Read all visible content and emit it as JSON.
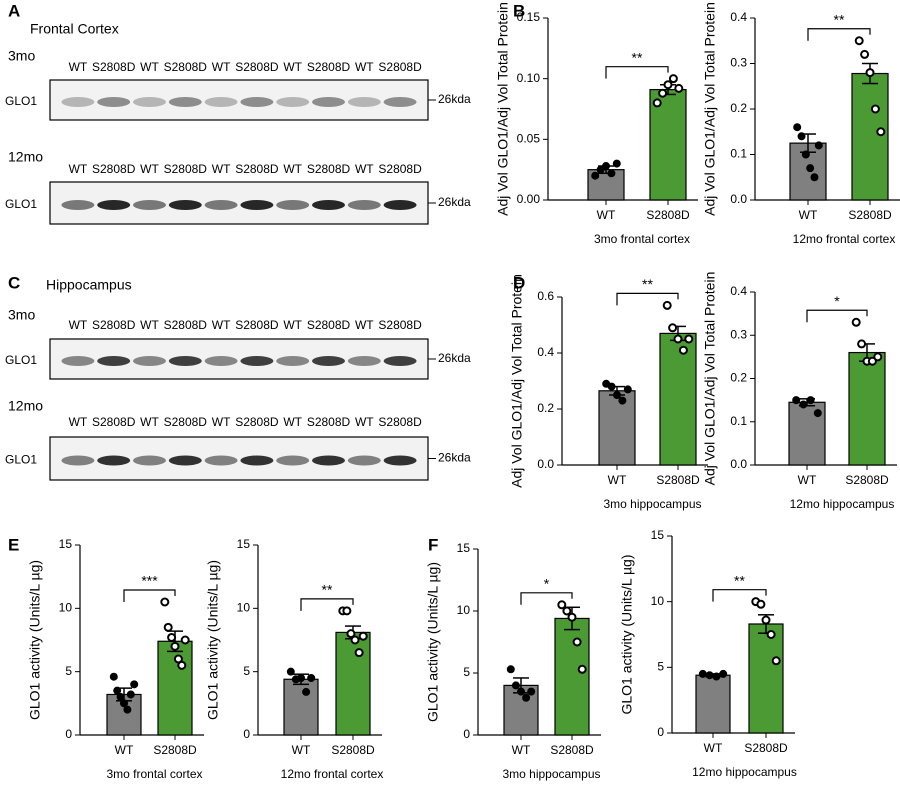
{
  "panel_labels": [
    "A",
    "B",
    "C",
    "D",
    "E",
    "F"
  ],
  "blots": [
    {
      "title": "Frontal Cortex",
      "rows": [
        {
          "age": "3mo",
          "lanes": [
            "WT",
            "S2808D",
            "WT",
            "S2808D",
            "WT",
            "S2808D",
            "WT",
            "S2808D",
            "WT",
            "S2808D"
          ],
          "row_label": "GLO1",
          "size": "26kda"
        },
        {
          "age": "12mo",
          "lanes": [
            "WT",
            "S2808D",
            "WT",
            "S2808D",
            "WT",
            "S2808D",
            "WT",
            "S2808D",
            "WT",
            "S2808D"
          ],
          "row_label": "GLO1",
          "size": "26kda"
        }
      ]
    },
    {
      "title": "Hippocampus",
      "rows": [
        {
          "age": "3mo",
          "lanes": [
            "WT",
            "S2808D",
            "WT",
            "S2808D",
            "WT",
            "S2808D",
            "WT",
            "S2808D",
            "WT",
            "S2808D"
          ],
          "row_label": "GLO1",
          "size": "26kda"
        },
        {
          "age": "12mo",
          "lanes": [
            "WT",
            "S2808D",
            "WT",
            "S2808D",
            "WT",
            "S2808D",
            "WT",
            "S2808D",
            "WT",
            "S2808D"
          ],
          "row_label": "GLO1",
          "size": "26kda"
        }
      ]
    }
  ],
  "chart_data": [
    {
      "type": "bar",
      "ylabel": "Adj Vol GLO1/Adj Vol Total Protein",
      "xlabel": "3mo frontal cortex",
      "significance": "**",
      "categories": [
        "WT",
        "S2808D"
      ],
      "colors": [
        "#808080",
        "#4b9a34"
      ],
      "values": [
        0.025,
        0.091
      ],
      "errors": [
        0.003,
        0.004
      ],
      "points": [
        [
          0.02,
          0.025,
          0.028,
          0.022,
          0.03
        ],
        [
          0.08,
          0.088,
          0.095,
          0.1,
          0.092
        ]
      ],
      "ylim": [
        0,
        0.15
      ],
      "yticks": [
        {
          "value": 0,
          "label": "0.00"
        },
        0.05,
        {
          "value": 0.1,
          "label": "0.10"
        },
        0.15
      ]
    },
    {
      "type": "bar",
      "ylabel": "Adj Vol GLO1/Adj Vol Total Protein",
      "xlabel": "12mo frontal cortex",
      "significance": "**",
      "categories": [
        "WT",
        "S2808D"
      ],
      "colors": [
        "#808080",
        "#4b9a34"
      ],
      "values": [
        0.125,
        0.278
      ],
      "errors": [
        0.02,
        0.022
      ],
      "points": [
        [
          0.16,
          0.14,
          0.1,
          0.07,
          0.05,
          0.12
        ],
        [
          0.35,
          0.32,
          0.28,
          0.2,
          0.15
        ]
      ],
      "ylim": [
        0,
        0.4
      ],
      "yticks": [
        {
          "value": 0,
          "label": "0.0"
        },
        0.1,
        0.2,
        0.3,
        0.4
      ]
    },
    {
      "type": "bar",
      "ylabel": "Adj Vol GLO1/Adj Vol Total Protein",
      "xlabel": "3mo hippocampus",
      "significance": "**",
      "categories": [
        "WT",
        "S2808D"
      ],
      "colors": [
        "#808080",
        "#4b9a34"
      ],
      "values": [
        0.265,
        0.47
      ],
      "errors": [
        0.015,
        0.025
      ],
      "points": [
        [
          0.29,
          0.28,
          0.25,
          0.23,
          0.27
        ],
        [
          0.57,
          0.49,
          0.45,
          0.41,
          0.45
        ]
      ],
      "ylim": [
        0,
        0.6
      ],
      "yticks": [
        {
          "value": 0,
          "label": "0.0"
        },
        0.2,
        0.4,
        0.6
      ]
    },
    {
      "type": "bar",
      "ylabel": "Adj Vol GLO1/Adj Vol Total Protein",
      "xlabel": "12mo hippocampus",
      "significance": "*",
      "categories": [
        "WT",
        "S2808D"
      ],
      "colors": [
        "#808080",
        "#4b9a34"
      ],
      "values": [
        0.145,
        0.26
      ],
      "errors": [
        0.008,
        0.02
      ],
      "points": [
        [
          0.15,
          0.14,
          0.15,
          0.12
        ],
        [
          0.33,
          0.28,
          0.24,
          0.24,
          0.25
        ]
      ],
      "ylim": [
        0,
        0.4
      ],
      "yticks": [
        {
          "value": 0,
          "label": "0.0"
        },
        0.1,
        0.2,
        0.3,
        0.4
      ]
    },
    {
      "type": "bar",
      "ylabel": "GLO1 activity (Units/L µg)",
      "xlabel": "3mo frontal cortex",
      "significance": "***",
      "categories": [
        "WT",
        "S2808D"
      ],
      "colors": [
        "#808080",
        "#4b9a34"
      ],
      "values": [
        3.2,
        7.4
      ],
      "errors": [
        0.5,
        0.8
      ],
      "points": [
        [
          4.6,
          3.5,
          3,
          2.5,
          2,
          3.2,
          4
        ],
        [
          10.5,
          8.5,
          7.7,
          7,
          6,
          5.5,
          7.5
        ]
      ],
      "ylim": [
        0,
        15
      ],
      "yticks": [
        0,
        5,
        10,
        15
      ]
    },
    {
      "type": "bar",
      "ylabel": "GLO1 activity (Units/L µg)",
      "xlabel": "12mo frontal cortex",
      "significance": "**",
      "categories": [
        "WT",
        "S2808D"
      ],
      "colors": [
        "#808080",
        "#4b9a34"
      ],
      "values": [
        4.4,
        8.1
      ],
      "errors": [
        0.4,
        0.5
      ],
      "points": [
        [
          5,
          4.4,
          4.5,
          3.4,
          4.5
        ],
        [
          9.8,
          9.8,
          8,
          7.5,
          6.5,
          7.8
        ]
      ],
      "ylim": [
        0,
        15
      ],
      "yticks": [
        0,
        5,
        10,
        15
      ]
    },
    {
      "type": "bar",
      "ylabel": "GLO1 activity (Units/L µg)",
      "xlabel": "3mo hippocampus",
      "significance": "*",
      "categories": [
        "WT",
        "S2808D"
      ],
      "colors": [
        "#808080",
        "#4b9a34"
      ],
      "values": [
        4,
        9.4
      ],
      "errors": [
        0.6,
        0.9
      ],
      "points": [
        [
          5.3,
          4,
          3.5,
          3,
          3.5
        ],
        [
          10.5,
          10,
          9.5,
          7.5,
          5.3
        ]
      ],
      "ylim": [
        0,
        15
      ],
      "yticks": [
        0,
        5,
        10,
        15
      ]
    },
    {
      "type": "bar",
      "ylabel": "GLO1 activity (Units/L µg)",
      "xlabel": "12mo hippocampus",
      "significance": "**",
      "categories": [
        "WT",
        "S2808D"
      ],
      "colors": [
        "#808080",
        "#4b9a34"
      ],
      "values": [
        4.4,
        8.3
      ],
      "errors": [
        0.1,
        0.7
      ],
      "points": [
        [
          4.5,
          4.4,
          4.3,
          4.5
        ],
        [
          10,
          9.8,
          8.6,
          7.5,
          5.5
        ]
      ],
      "ylim": [
        0,
        15
      ],
      "yticks": [
        0,
        5,
        10,
        15
      ]
    }
  ]
}
